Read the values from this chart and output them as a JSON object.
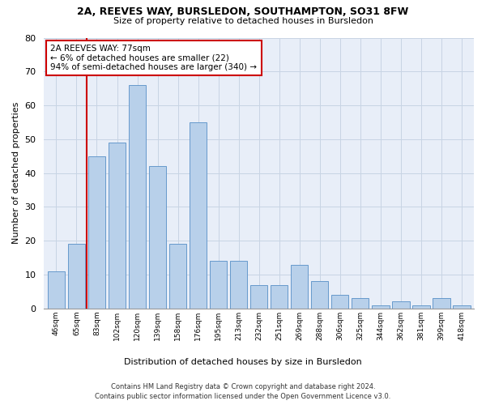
{
  "title": "2A, REEVES WAY, BURSLEDON, SOUTHAMPTON, SO31 8FW",
  "subtitle": "Size of property relative to detached houses in Bursledon",
  "xlabel": "Distribution of detached houses by size in Bursledon",
  "ylabel": "Number of detached properties",
  "bar_heights": [
    11,
    19,
    45,
    49,
    66,
    42,
    19,
    55,
    14,
    14,
    7,
    7,
    13,
    8,
    4,
    3,
    1,
    2,
    1,
    3,
    1
  ],
  "bar_labels": [
    "46sqm",
    "65sqm",
    "83sqm",
    "102sqm",
    "120sqm",
    "139sqm",
    "158sqm",
    "176sqm",
    "195sqm",
    "213sqm",
    "232sqm",
    "251sqm",
    "269sqm",
    "288sqm",
    "306sqm",
    "325sqm",
    "344sqm",
    "362sqm",
    "381sqm",
    "399sqm",
    "418sqm"
  ],
  "bar_color": "#b8d0ea",
  "bar_edge_color": "#6699cc",
  "bar_width": 0.85,
  "ylim": [
    0,
    80
  ],
  "yticks": [
    0,
    10,
    20,
    30,
    40,
    50,
    60,
    70,
    80
  ],
  "vline_x": 1.5,
  "vline_color": "#cc0000",
  "annotation_text": "2A REEVES WAY: 77sqm\n← 6% of detached houses are smaller (22)\n94% of semi-detached houses are larger (340) →",
  "annotation_box_color": "#ffffff",
  "annotation_box_edge": "#cc0000",
  "grid_color": "#c8d4e4",
  "bg_color": "#e8eef8",
  "footer_line1": "Contains HM Land Registry data © Crown copyright and database right 2024.",
  "footer_line2": "Contains public sector information licensed under the Open Government Licence v3.0."
}
